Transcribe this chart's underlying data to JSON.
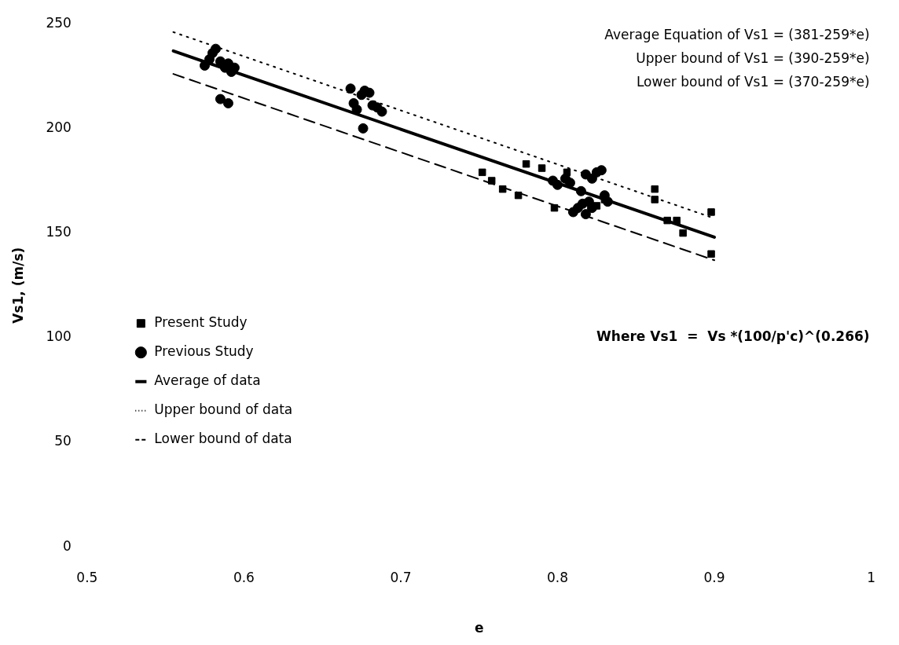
{
  "chart_data": {
    "type": "scatter",
    "xlabel": "e",
    "ylabel": "Vs1, (m/s)",
    "xlim": [
      0.5,
      1
    ],
    "xticks": [
      0.5,
      0.6,
      0.7,
      0.8,
      0.9,
      1
    ],
    "ylim": [
      0,
      250
    ],
    "yticks": [
      0,
      50,
      100,
      150,
      200,
      250
    ],
    "grid": false,
    "legend": "bottom left",
    "annotations": [
      "Average Equation of Vs1 = (381-259*e)",
      "Upper bound of Vs1 = (390-259*e)",
      "Lower bound of Vs1 = (370-259*e)",
      "Where Vs1  =  Vs *(100/p'c)^(0.266)"
    ],
    "series": [
      {
        "name": "Present Study",
        "marker": "square",
        "color": "#000000",
        "x": [
          0.752,
          0.758,
          0.765,
          0.775,
          0.78,
          0.79,
          0.798,
          0.806,
          0.825,
          0.83,
          0.862,
          0.862,
          0.87,
          0.876,
          0.88,
          0.898,
          0.898
        ],
        "values": [
          179,
          175,
          171,
          168,
          183,
          181,
          162,
          179,
          163,
          166,
          171,
          166,
          156,
          156,
          150,
          160,
          140
        ]
      },
      {
        "name": "Previous Study",
        "marker": "circle",
        "color": "#000000",
        "x": [
          0.575,
          0.578,
          0.58,
          0.582,
          0.585,
          0.588,
          0.59,
          0.592,
          0.594,
          0.585,
          0.59,
          0.668,
          0.67,
          0.672,
          0.675,
          0.677,
          0.68,
          0.682,
          0.685,
          0.688,
          0.676,
          0.797,
          0.8,
          0.805,
          0.808,
          0.81,
          0.813,
          0.816,
          0.818,
          0.82,
          0.822,
          0.818,
          0.822,
          0.825,
          0.828,
          0.83,
          0.832,
          0.815
        ],
        "values": [
          230,
          233,
          236,
          238,
          232,
          229,
          231,
          227,
          229,
          214,
          212,
          219,
          212,
          209,
          216,
          218,
          217,
          211,
          210,
          208,
          200,
          175,
          173,
          176,
          174,
          160,
          162,
          164,
          159,
          165,
          162,
          178,
          176,
          179,
          180,
          168,
          165,
          170
        ]
      },
      {
        "name": "Average of data",
        "type": "line",
        "marker": "none",
        "line_style": "solid",
        "color": "#000000",
        "x": [
          0.555,
          0.9
        ],
        "values": [
          237,
          148
        ]
      },
      {
        "name": "Upper bound of data",
        "type": "line",
        "marker": "none",
        "line_style": "dotted",
        "color": "#000000",
        "x": [
          0.555,
          0.9
        ],
        "values": [
          246,
          157
        ]
      },
      {
        "name": "Lower bound of data",
        "type": "line",
        "marker": "none",
        "line_style": "dashed",
        "color": "#000000",
        "x": [
          0.555,
          0.9
        ],
        "values": [
          226,
          137
        ]
      }
    ]
  }
}
